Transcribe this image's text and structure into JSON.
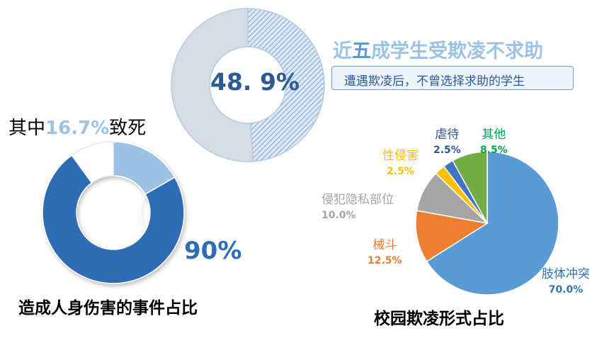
{
  "colors": {
    "accent_blue": "#2e6db4",
    "light_blue": "#9cc3e6",
    "donut_gray": "#d6dce5",
    "hatch_blue": "#7ea6d4",
    "pie_green": "#70ad47",
    "pie_blue": "#5b9bd5",
    "pie_orange": "#ed7d31",
    "pie_gray": "#a5a5a5",
    "pie_yellow": "#ffc000",
    "pie_darkblue": "#4472c4"
  },
  "top": {
    "center_value": "48. 9%",
    "headline_a": "近",
    "headline_b": "五",
    "headline_c": "成学生受欺凌不求助",
    "callout_text": "遭遇欺凌后，不曾选择求助的学生"
  },
  "left": {
    "death_label_a": "其中",
    "death_value": "16.7%",
    "death_label_b": "致死",
    "big_value": "90%",
    "title": "造成人身伤害的事件占比"
  },
  "right": {
    "title": "校园欺凌形式占比",
    "labels": [
      {
        "name": "肢体冲突",
        "pct": "70.0%"
      },
      {
        "name": "械斗",
        "pct": "12.5%"
      },
      {
        "name": "侵犯隐私部位",
        "pct": "10.0%"
      },
      {
        "name": "性侵害",
        "pct": "2.5%"
      },
      {
        "name": "虐待",
        "pct": "2.5%"
      },
      {
        "name": "其他",
        "pct": "8.5%"
      }
    ]
  },
  "chart_data": [
    {
      "type": "pie",
      "title": "",
      "categories": [
        "不曾选择求助",
        "其他"
      ],
      "values": [
        48.9,
        51.1
      ]
    },
    {
      "type": "pie",
      "title": "造成人身伤害的事件占比",
      "categories": [
        "人身伤害",
        "其中致死",
        "其他"
      ],
      "values": [
        90,
        16.7,
        10
      ]
    },
    {
      "type": "pie",
      "title": "校园欺凌形式占比",
      "categories": [
        "肢体冲突",
        "械斗",
        "侵犯隐私部位",
        "性侵害",
        "虐待",
        "其他"
      ],
      "values": [
        70.0,
        12.5,
        10.0,
        2.5,
        2.5,
        8.5
      ]
    }
  ]
}
